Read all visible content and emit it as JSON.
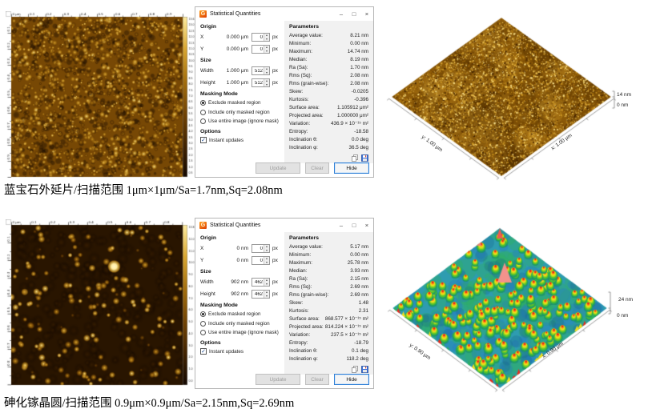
{
  "captions": [
    "蓝宝石外延片/扫描范围 1μm×1μm/Sa=1.7nm,Sq=2.08nm",
    "砷化镓晶圆/扫描范围 0.9μm×0.9μm/Sa=2.15nm,Sq=2.69nm"
  ],
  "afm_panels": [
    {
      "ruler_x": [
        "0 μm",
        "0.1",
        "0.2",
        "0.3",
        "0.4",
        "0.5",
        "0.6",
        "0.7",
        "0.8",
        "0.9"
      ],
      "ruler_y": [
        "0.1",
        "0.2",
        "0.3",
        "0.4",
        "0.5",
        "0.6",
        "0.7",
        "0.8",
        "0.9"
      ],
      "colorbar": [
        "13.6 nm",
        "13.0",
        "12.5",
        "12.0",
        "11.5",
        "11.0",
        "10.5",
        "10.0",
        "9.5",
        "9.0",
        "8.5",
        "8.0",
        "7.5",
        "7.0",
        "6.5",
        "6.0",
        "5.5",
        "5.0",
        "4.5",
        "4.0",
        "3.5",
        "3.0",
        "2.5",
        "2.0",
        "1.5",
        "1.0",
        "0.5"
      ],
      "texture": "grains"
    },
    {
      "ruler_x": [
        "0 μm",
        "0.1",
        "0.2",
        "0.3",
        "0.4",
        "0.5",
        "0.6",
        "0.7",
        "0.8"
      ],
      "ruler_y": [
        "0.1",
        "0.2",
        "0.3",
        "0.4",
        "0.5",
        "0.6",
        "0.7",
        "0.8"
      ],
      "colorbar": [
        "13.8 nm",
        "12.0",
        "11.0",
        "10.0",
        "9.0",
        "8.0",
        "7.0",
        "6.0",
        "5.0",
        "4.0",
        "3.0",
        "2.0",
        "1.0",
        "0.0"
      ],
      "texture": "dots"
    }
  ],
  "dialogs": [
    {
      "title": "Statistical Quantities",
      "icon": "G",
      "win": {
        "minimize": "–",
        "maximize": "□",
        "close": "×"
      },
      "origin": {
        "header": "Origin",
        "x": {
          "label": "X",
          "value": "0.000 μm",
          "px": "0",
          "unit": "px"
        },
        "y": {
          "label": "Y",
          "value": "0.000 μm",
          "px": "0",
          "unit": "px"
        }
      },
      "size": {
        "header": "Size",
        "w": {
          "label": "Width",
          "value": "1.000 μm",
          "px": "512",
          "unit": "px"
        },
        "h": {
          "label": "Height",
          "value": "1.000 μm",
          "px": "512",
          "unit": "px"
        }
      },
      "masking": {
        "header": "Masking Mode",
        "opt1": "Exclude masked region",
        "opt2": "Include only masked region",
        "opt3": "Use entire image (ignore mask)"
      },
      "options": {
        "header": "Options",
        "instant": "Instant updates",
        "check": "✓"
      },
      "params": {
        "header": "Parameters",
        "rows": [
          {
            "n": "Average value:",
            "v": "8.21 nm"
          },
          {
            "n": "Minimum:",
            "v": "0.00 nm"
          },
          {
            "n": "Maximum:",
            "v": "14.74 nm"
          },
          {
            "n": "Median:",
            "v": "8.19 nm"
          },
          {
            "n": "Ra (Sa):",
            "v": "1.70 nm"
          },
          {
            "n": "Rms (Sq):",
            "v": "2.08 nm"
          },
          {
            "n": "Rms (grain-wise):",
            "v": "2.08 nm"
          },
          {
            "n": "Skew:",
            "v": "-0.0205"
          },
          {
            "n": "Kurtosis:",
            "v": "-0.396"
          },
          {
            "n": "Surface area:",
            "v": "1.105912 μm²"
          },
          {
            "n": "Projected area:",
            "v": "1.000000 μm²"
          },
          {
            "n": "Variation:",
            "v": "436.9 × 10⁻¹⁵ m²"
          },
          {
            "n": "Entropy:",
            "v": "-18.58"
          },
          {
            "n": "Inclination θ:",
            "v": "0.0 deg"
          },
          {
            "n": "Inclination φ:",
            "v": "36.5 deg"
          }
        ]
      },
      "buttons": {
        "update": "Update",
        "clear": "Clear",
        "hide": "Hide"
      }
    },
    {
      "title": "Statistical Quantities",
      "icon": "G",
      "win": {
        "minimize": "–",
        "maximize": "□",
        "close": "×"
      },
      "origin": {
        "header": "Origin",
        "x": {
          "label": "X",
          "value": "0 nm",
          "px": "0",
          "unit": "px"
        },
        "y": {
          "label": "Y",
          "value": "0 nm",
          "px": "0",
          "unit": "px"
        }
      },
      "size": {
        "header": "Size",
        "w": {
          "label": "Width",
          "value": "902 nm",
          "px": "462",
          "unit": "px"
        },
        "h": {
          "label": "Height",
          "value": "902 nm",
          "px": "462",
          "unit": "px"
        }
      },
      "masking": {
        "header": "Masking Mode",
        "opt1": "Exclude masked region",
        "opt2": "Include only masked region",
        "opt3": "Use entire image (ignore mask)"
      },
      "options": {
        "header": "Options",
        "instant": "Instant updates",
        "check": "✓"
      },
      "params": {
        "header": "Parameters",
        "rows": [
          {
            "n": "Average value:",
            "v": "5.17 nm"
          },
          {
            "n": "Minimum:",
            "v": "0.00 nm"
          },
          {
            "n": "Maximum:",
            "v": "25.78 nm"
          },
          {
            "n": "Median:",
            "v": "3.93 nm"
          },
          {
            "n": "Ra (Sa):",
            "v": "2.15 nm"
          },
          {
            "n": "Rms (Sq):",
            "v": "2.69 nm"
          },
          {
            "n": "Rms (grain-wise):",
            "v": "2.69 nm"
          },
          {
            "n": "Skew:",
            "v": "1.48"
          },
          {
            "n": "Kurtosis:",
            "v": "2.31"
          },
          {
            "n": "Surface area:",
            "v": "868.577 × 10⁻¹⁵ m²"
          },
          {
            "n": "Projected area:",
            "v": "814.224 × 10⁻¹⁵ m²"
          },
          {
            "n": "Variation:",
            "v": "237.5 × 10⁻¹⁵ m²"
          },
          {
            "n": "Entropy:",
            "v": "-18.79"
          },
          {
            "n": "Inclination θ:",
            "v": "0.1 deg"
          },
          {
            "n": "Inclination φ:",
            "v": "118.2 deg"
          }
        ]
      },
      "buttons": {
        "update": "Update",
        "clear": "Clear",
        "hide": "Hide"
      }
    }
  ],
  "views3d": [
    {
      "y_label": "y: 1.00 μm",
      "x_label": "x: 1.00 μm",
      "z_max": "14 nm",
      "z_min": "0 nm"
    },
    {
      "y_label": "y: 0.90 μm",
      "x_label": "x: 0.90 μm",
      "z_max": "24 nm",
      "z_min": "0 nm"
    }
  ],
  "colors": {
    "accent_blue": "#2f7fd6",
    "panel_gray": "#f1f1f1",
    "gold_bright": "#f6cf63"
  }
}
